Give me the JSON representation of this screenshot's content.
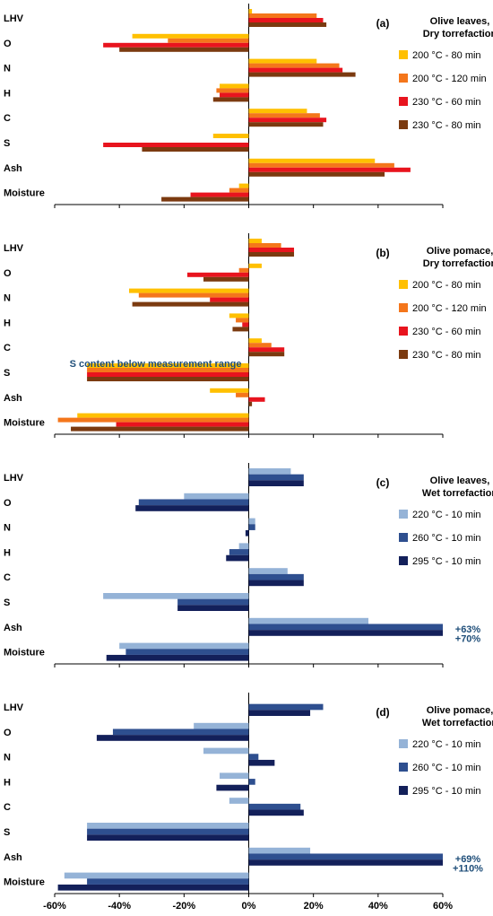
{
  "chart_data": [
    {
      "type": "bar",
      "orientation": "horizontal",
      "letter": "(a)",
      "title_lines": [
        "Olive leaves,",
        "Dry torrefaction"
      ],
      "categories": [
        "LHV",
        "O",
        "N",
        "H",
        "C",
        "S",
        "Ash",
        "Moisture"
      ],
      "series": [
        {
          "name": "200 °C - 80 min",
          "color": "#FFC000",
          "values": [
            1,
            -36,
            21,
            -9,
            18,
            -11,
            39,
            -3
          ]
        },
        {
          "name": "200 °C - 120 min",
          "color": "#F4761B",
          "values": [
            21,
            -25,
            28,
            -10,
            22,
            0,
            45,
            -6
          ]
        },
        {
          "name": "230 °C - 60 min",
          "color": "#E8141E",
          "values": [
            23,
            -45,
            29,
            -9,
            24,
            -45,
            50,
            -18
          ]
        },
        {
          "name": "230 °C - 80 min",
          "color": "#7B3A10",
          "values": [
            24,
            -40,
            33,
            -11,
            23,
            -33,
            42,
            -27
          ]
        }
      ],
      "xlim": [
        -60,
        60
      ],
      "grid": false,
      "legend": "right",
      "annotations": []
    },
    {
      "type": "bar",
      "orientation": "horizontal",
      "letter": "(b)",
      "title_lines": [
        "Olive pomace,",
        "Dry torrefaction"
      ],
      "categories": [
        "LHV",
        "O",
        "N",
        "H",
        "C",
        "S",
        "Ash",
        "Moisture"
      ],
      "series": [
        {
          "name": "200 °C - 80 min",
          "color": "#FFC000",
          "values": [
            4,
            4,
            -37,
            -6,
            4,
            -50,
            -12,
            -53
          ]
        },
        {
          "name": "200 °C - 120 min",
          "color": "#F4761B",
          "values": [
            10,
            -3,
            -34,
            -4,
            7,
            -50,
            -4,
            -59
          ]
        },
        {
          "name": "230 °C - 60 min",
          "color": "#E8141E",
          "values": [
            14,
            -19,
            -12,
            -2,
            11,
            -50,
            5,
            -41
          ]
        },
        {
          "name": "230 °C - 80 min",
          "color": "#7B3A10",
          "values": [
            14,
            -14,
            -36,
            -5,
            11,
            -50,
            1,
            -55
          ]
        }
      ],
      "xlim": [
        -60,
        60
      ],
      "grid": false,
      "legend": "right",
      "annotations": [
        {
          "text": "S content below measurement range",
          "category": "C",
          "side": "left"
        }
      ]
    },
    {
      "type": "bar",
      "orientation": "horizontal",
      "letter": "(c)",
      "title_lines": [
        "Olive leaves,",
        "Wet torrefaction"
      ],
      "categories": [
        "LHV",
        "O",
        "N",
        "H",
        "C",
        "S",
        "Ash",
        "Moisture"
      ],
      "series": [
        {
          "name": "220 °C - 10 min",
          "color": "#95B3D7",
          "values": [
            13,
            -20,
            2,
            -3,
            12,
            -45,
            37,
            -40
          ]
        },
        {
          "name": "260 °C - 10 min",
          "color": "#2E4F8F",
          "values": [
            17,
            -34,
            2,
            -6,
            17,
            -22,
            60,
            -38
          ]
        },
        {
          "name": "295 °C - 10 min",
          "color": "#13205A",
          "values": [
            17,
            -35,
            -1,
            -7,
            17,
            -22,
            60,
            -44
          ]
        }
      ],
      "xlim": [
        -60,
        60
      ],
      "grid": false,
      "legend": "right",
      "annotations": [
        {
          "text": "+63%",
          "series": 1,
          "category": "Ash"
        },
        {
          "text": "+70%",
          "series": 2,
          "category": "Ash"
        }
      ]
    },
    {
      "type": "bar",
      "orientation": "horizontal",
      "letter": "(d)",
      "title_lines": [
        "Olive pomace,",
        "Wet torrefaction"
      ],
      "categories": [
        "LHV",
        "O",
        "N",
        "H",
        "C",
        "S",
        "Ash",
        "Moisture"
      ],
      "series": [
        {
          "name": "220 °C - 10 min",
          "color": "#95B3D7",
          "values": [
            0,
            -17,
            -14,
            -9,
            -6,
            -50,
            19,
            -57
          ]
        },
        {
          "name": "260 °C - 10 min",
          "color": "#2E4F8F",
          "values": [
            23,
            -42,
            3,
            2,
            16,
            -50,
            60,
            -50
          ]
        },
        {
          "name": "295 °C - 10 min",
          "color": "#13205A",
          "values": [
            19,
            -47,
            8,
            -10,
            17,
            -50,
            60,
            -59
          ]
        }
      ],
      "xlim": [
        -60,
        60
      ],
      "grid": false,
      "legend": "right",
      "annotations": [
        {
          "text": "+69%",
          "series": 1,
          "category": "Ash"
        },
        {
          "text": "+110%",
          "series": 2,
          "category": "Ash"
        }
      ]
    }
  ],
  "x_axis": {
    "ticks": [
      -60,
      -40,
      -20,
      0,
      20,
      40,
      60
    ],
    "tick_labels": [
      "-60%",
      "-40%",
      "-20%",
      "0%",
      "20%",
      "40%",
      "60%"
    ]
  }
}
